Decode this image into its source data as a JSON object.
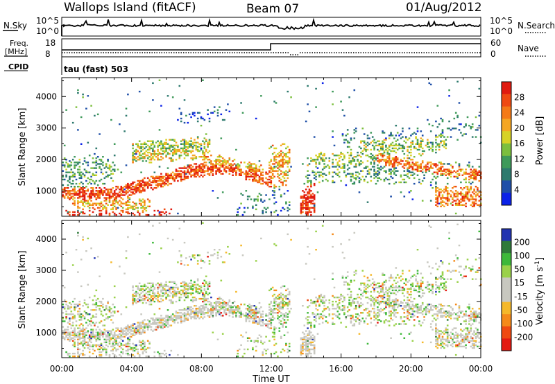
{
  "header": {
    "station": "Wallops Island (fitACF)",
    "beam": "Beam 07",
    "date": "01/Aug/2012"
  },
  "top_panel": {
    "left_label": "N.Sky",
    "right_label": "N.Search",
    "left_ticks": [
      "10^5",
      "10^0"
    ],
    "right_ticks": [
      "10^5",
      "10^0"
    ]
  },
  "freq_panel": {
    "left_label_top": "Freq.",
    "left_label_unit": "[MHz]",
    "left_ticks": [
      "18",
      "8"
    ],
    "right_label": "Nave",
    "right_ticks": [
      "60",
      "0"
    ],
    "cpid_label": "CPID",
    "cpid_value": "tau (fast) 503"
  },
  "chart_data": [
    {
      "type": "heatmap",
      "name": "power",
      "ylabel": "Slant Range [km]",
      "yticks": [
        1000,
        2000,
        3000,
        4000
      ],
      "ylim": [
        200,
        4600
      ],
      "xlim_hours": [
        0,
        24
      ],
      "colorbar": {
        "label": "Power [dB]",
        "ticks": [
          "4",
          "8",
          "12",
          "16",
          "20",
          "24",
          "28"
        ],
        "colors": [
          "#0b22e8",
          "#1f4fa8",
          "#2e7a6e",
          "#3f9a5a",
          "#7cbf3e",
          "#d7d226",
          "#f5a623",
          "#f47a17",
          "#ef4a12",
          "#e01b10"
        ]
      }
    },
    {
      "type": "heatmap",
      "name": "velocity",
      "ylabel": "Slant Range [km]",
      "yticks": [
        1000,
        2000,
        3000,
        4000
      ],
      "ylim": [
        200,
        4600
      ],
      "xlim_hours": [
        0,
        24
      ],
      "colorbar": {
        "label": "Velocity [m s^-1]",
        "ticks": [
          "200",
          "100",
          "50",
          "15",
          "-15",
          "-50",
          "-100",
          "-200"
        ],
        "colors": [
          "#2233b0",
          "#2f7a3a",
          "#3db83a",
          "#9ad14a",
          "#c8c8c0",
          "#c8c8c0",
          "#f5b82a",
          "#f58a1a",
          "#ef4a12",
          "#e31a12"
        ]
      }
    }
  ],
  "x_axis": {
    "ticks": [
      "00:00",
      "04:00",
      "08:00",
      "12:00",
      "16:00",
      "20:00",
      "00:00"
    ],
    "label": "Time UT"
  }
}
